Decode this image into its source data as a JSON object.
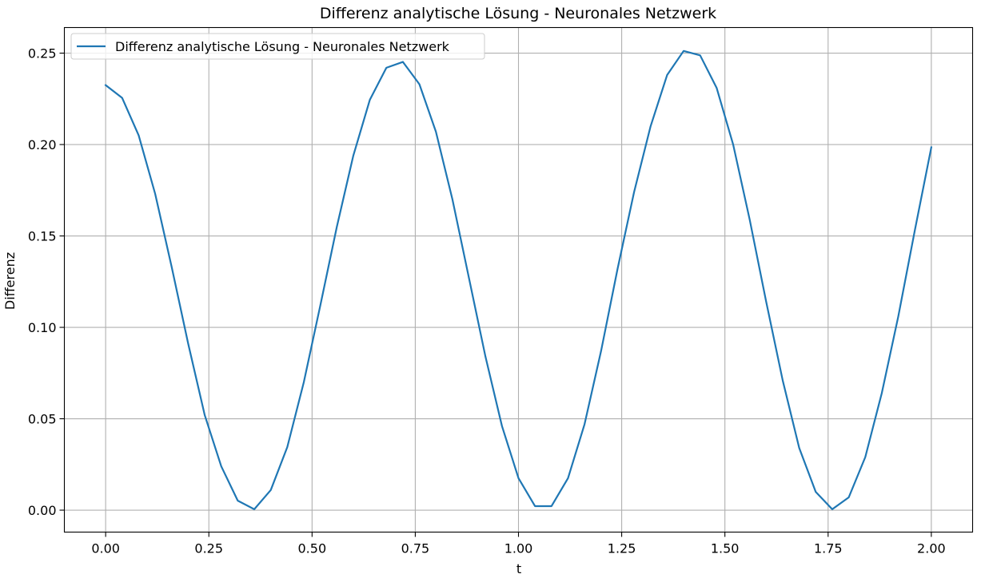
{
  "chart_data": {
    "type": "line",
    "title": "Differenz analytische Lösung - Neuronales Netzwerk",
    "xlabel": "t",
    "ylabel": "Differenz",
    "xlim": [
      -0.1,
      2.1
    ],
    "ylim": [
      -0.012,
      0.264
    ],
    "xticks": [
      0.0,
      0.25,
      0.5,
      0.75,
      1.0,
      1.25,
      1.5,
      1.75,
      2.0
    ],
    "xtick_labels": [
      "0.00",
      "0.25",
      "0.50",
      "0.75",
      "1.00",
      "1.25",
      "1.50",
      "1.75",
      "2.00"
    ],
    "yticks": [
      0.0,
      0.05,
      0.1,
      0.15,
      0.2,
      0.25
    ],
    "ytick_labels": [
      "0.00",
      "0.05",
      "0.10",
      "0.15",
      "0.20",
      "0.25"
    ],
    "grid": true,
    "legend_position": "upper-left",
    "series": [
      {
        "name": "Differenz analytische Lösung - Neuronales Netzwerk",
        "color": "#1f77b4",
        "x": [
          0.0,
          0.04,
          0.08,
          0.12,
          0.16,
          0.2,
          0.24,
          0.28,
          0.32,
          0.36,
          0.4,
          0.44,
          0.48,
          0.52,
          0.56,
          0.6,
          0.64,
          0.68,
          0.72,
          0.76,
          0.8,
          0.84,
          0.88,
          0.92,
          0.96,
          1.0,
          1.04,
          1.08,
          1.12,
          1.16,
          1.2,
          1.24,
          1.28,
          1.32,
          1.36,
          1.4,
          1.44,
          1.48,
          1.52,
          1.56,
          1.6,
          1.64,
          1.68,
          1.72,
          1.76,
          1.8,
          1.84,
          1.88,
          1.92,
          1.96,
          2.0
        ],
        "y": [
          0.2325,
          0.2255,
          0.205,
          0.173,
          0.133,
          0.091,
          0.052,
          0.024,
          0.0052,
          0.0005,
          0.011,
          0.0345,
          0.07,
          0.112,
          0.155,
          0.194,
          0.2245,
          0.242,
          0.2452,
          0.233,
          0.207,
          0.17,
          0.127,
          0.084,
          0.046,
          0.0175,
          0.0022,
          0.0022,
          0.0175,
          0.047,
          0.087,
          0.132,
          0.174,
          0.21,
          0.238,
          0.2512,
          0.2488,
          0.231,
          0.2,
          0.159,
          0.114,
          0.071,
          0.034,
          0.01,
          0.0005,
          0.007,
          0.029,
          0.064,
          0.106,
          0.153,
          0.1985
        ]
      }
    ]
  }
}
